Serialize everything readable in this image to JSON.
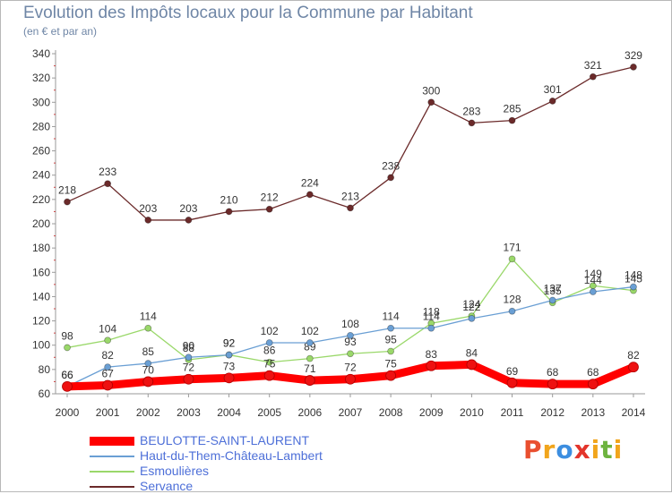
{
  "header": {
    "title": "Evolution des Impôts locaux pour la Commune par Habitant",
    "subtitle": "(en € et par an)"
  },
  "brand": {
    "logo_text": "Proxiti",
    "colors": [
      "#e94f2f",
      "#f1a51c",
      "#3c8ee0",
      "#e3352b",
      "#f1a51c",
      "#6db33f",
      "#f1a51c"
    ]
  },
  "chart_data": {
    "type": "line",
    "title": "Evolution des Impôts locaux pour la Commune par Habitant",
    "ylabel": "(en € et par an)",
    "xlabel": "",
    "x": [
      "2000",
      "2001",
      "2002",
      "2003",
      "2004",
      "2005",
      "2006",
      "2007",
      "2008",
      "2009",
      "2010",
      "2011",
      "2012",
      "2013",
      "2014"
    ],
    "ylim": [
      60,
      340
    ],
    "yticks": [
      60,
      80,
      100,
      120,
      140,
      160,
      180,
      200,
      220,
      240,
      260,
      280,
      300,
      320,
      340
    ],
    "grid": false,
    "legend_position": "bottom-left",
    "series": [
      {
        "name": "BEULOTTE-SAINT-LAURENT",
        "color": "#ff0000",
        "values": [
          66,
          67,
          70,
          72,
          73,
          75,
          71,
          72,
          75,
          83,
          84,
          69,
          68,
          68,
          82
        ]
      },
      {
        "name": "Haut-du-Them-Château-Lambert",
        "color": "#6a9fd4",
        "values": [
          66,
          82,
          85,
          90,
          92,
          102,
          102,
          108,
          114,
          114,
          122,
          128,
          137,
          144,
          148
        ]
      },
      {
        "name": "Esmoulières",
        "color": "#9ad86a",
        "values": [
          98,
          104,
          114,
          88,
          92,
          86,
          89,
          93,
          95,
          118,
          124,
          171,
          135,
          149,
          145
        ]
      },
      {
        "name": "Servance",
        "color": "#6b2a2a",
        "values": [
          218,
          233,
          203,
          203,
          210,
          212,
          224,
          213,
          238,
          300,
          283,
          285,
          301,
          321,
          329
        ]
      }
    ]
  }
}
